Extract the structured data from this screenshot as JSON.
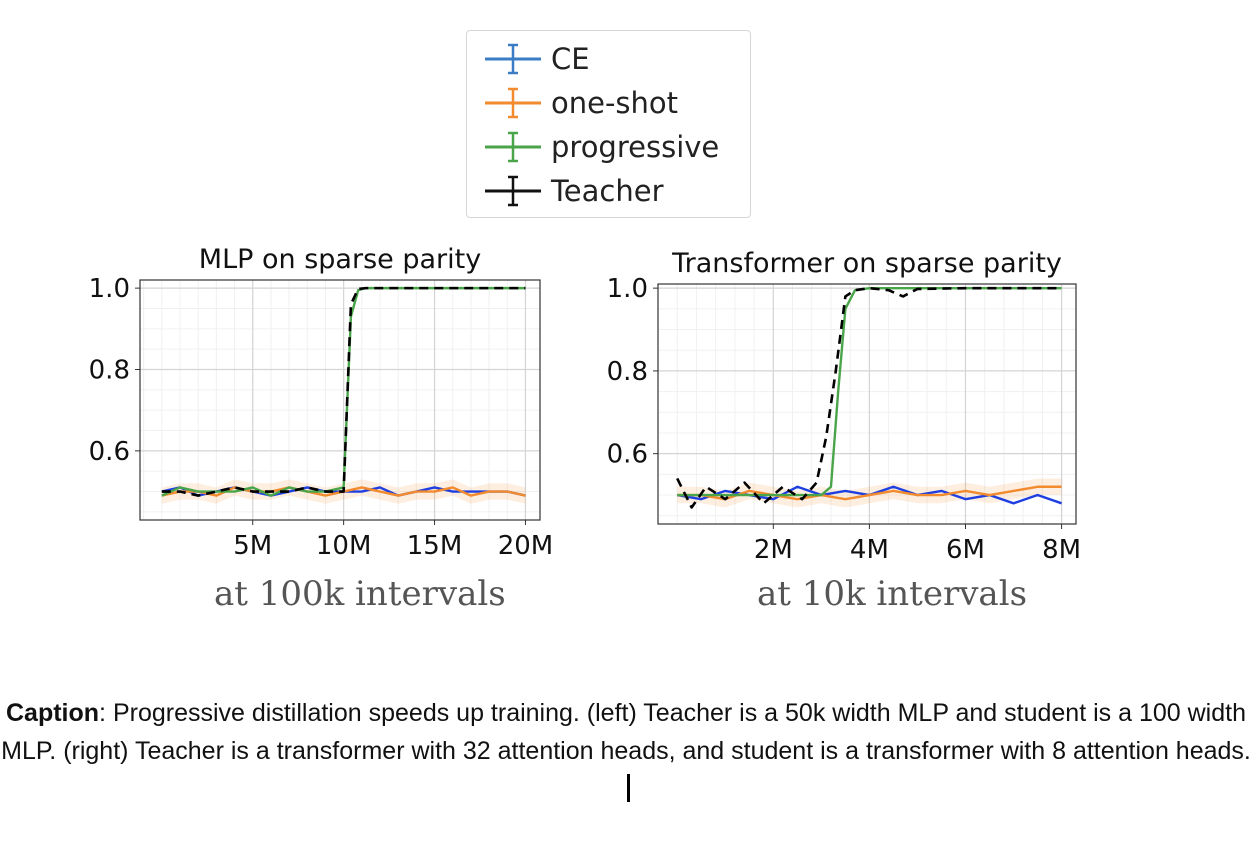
{
  "legend": {
    "items": [
      {
        "label": "CE",
        "color": "#3a7dc4"
      },
      {
        "label": "one-shot",
        "color": "#f28a2e"
      },
      {
        "label": "progressive",
        "color": "#4aa54a"
      },
      {
        "label": "Teacher",
        "color": "#111111"
      }
    ]
  },
  "chart_data": [
    {
      "type": "line",
      "title": "MLP on sparse parity",
      "xlabel": "",
      "ylabel": "",
      "x_unit": "M",
      "xlim": [
        -1.2,
        20.8
      ],
      "ylim": [
        0.43,
        1.02
      ],
      "xticks": [
        5,
        10,
        15,
        20
      ],
      "xtick_labels": [
        "5M",
        "10M",
        "15M",
        "20M"
      ],
      "yticks": [
        0.6,
        0.8,
        1.0
      ],
      "ytick_labels": [
        "0.6",
        "0.8",
        "1.0"
      ],
      "grid": true,
      "series": [
        {
          "name": "CE",
          "color": "#1f3fe0",
          "x": [
            0,
            1,
            2,
            3,
            4,
            5,
            6,
            7,
            8,
            9,
            10,
            11,
            12,
            13,
            14,
            15,
            16,
            17,
            18,
            19,
            20
          ],
          "y": [
            0.5,
            0.51,
            0.49,
            0.5,
            0.51,
            0.5,
            0.49,
            0.5,
            0.51,
            0.5,
            0.5,
            0.5,
            0.51,
            0.49,
            0.5,
            0.51,
            0.5,
            0.5,
            0.5,
            0.5,
            0.49
          ]
        },
        {
          "name": "one-shot",
          "color": "#f28a2e",
          "x": [
            0,
            1,
            2,
            3,
            4,
            5,
            6,
            7,
            8,
            9,
            10,
            11,
            12,
            13,
            14,
            15,
            16,
            17,
            18,
            19,
            20
          ],
          "y": [
            0.49,
            0.5,
            0.5,
            0.49,
            0.51,
            0.5,
            0.5,
            0.51,
            0.5,
            0.49,
            0.5,
            0.51,
            0.5,
            0.49,
            0.5,
            0.5,
            0.51,
            0.49,
            0.5,
            0.5,
            0.49
          ]
        },
        {
          "name": "progressive",
          "color": "#4aa54a",
          "x": [
            0,
            1,
            2,
            3,
            4,
            5,
            6,
            7,
            8,
            9,
            10,
            10.4,
            10.8,
            11.2,
            12,
            14,
            16,
            18,
            20
          ],
          "y": [
            0.49,
            0.51,
            0.5,
            0.5,
            0.5,
            0.51,
            0.49,
            0.51,
            0.5,
            0.5,
            0.51,
            0.93,
            0.995,
            1.0,
            1.0,
            1.0,
            1.0,
            1.0,
            1.0
          ]
        },
        {
          "name": "Teacher",
          "color": "#000000",
          "dashed": true,
          "x": [
            0,
            1,
            2,
            3,
            4,
            5,
            6,
            7,
            8,
            9,
            10,
            10.4,
            10.8,
            11.2,
            12,
            14,
            16,
            18,
            20
          ],
          "y": [
            0.5,
            0.5,
            0.49,
            0.5,
            0.51,
            0.5,
            0.5,
            0.5,
            0.51,
            0.5,
            0.5,
            0.96,
            0.998,
            1.0,
            1.0,
            1.0,
            1.0,
            1.0,
            1.0
          ]
        }
      ]
    },
    {
      "type": "line",
      "title": "Transformer on sparse parity",
      "xlabel": "",
      "ylabel": "",
      "x_unit": "M",
      "xlim": [
        -0.4,
        8.3
      ],
      "ylim": [
        0.43,
        1.01
      ],
      "xticks": [
        2,
        4,
        6,
        8
      ],
      "xtick_labels": [
        "2M",
        "4M",
        "6M",
        "8M"
      ],
      "yticks": [
        0.6,
        0.8,
        1.0
      ],
      "ytick_labels": [
        "0.6",
        "0.8",
        "1.0"
      ],
      "grid": true,
      "series": [
        {
          "name": "CE",
          "color": "#1f3fe0",
          "x": [
            0,
            0.5,
            1,
            1.5,
            2,
            2.5,
            3,
            3.5,
            4,
            4.5,
            5,
            5.5,
            6,
            6.5,
            7,
            7.5,
            8
          ],
          "y": [
            0.5,
            0.49,
            0.51,
            0.5,
            0.49,
            0.52,
            0.5,
            0.51,
            0.5,
            0.52,
            0.5,
            0.51,
            0.49,
            0.5,
            0.48,
            0.5,
            0.48
          ]
        },
        {
          "name": "one-shot",
          "color": "#f28a2e",
          "x": [
            0,
            0.5,
            1,
            1.5,
            2,
            2.5,
            3,
            3.5,
            4,
            4.5,
            5,
            5.5,
            6,
            6.5,
            7,
            7.5,
            8
          ],
          "y": [
            0.5,
            0.5,
            0.49,
            0.51,
            0.5,
            0.49,
            0.5,
            0.49,
            0.5,
            0.51,
            0.5,
            0.5,
            0.51,
            0.5,
            0.51,
            0.52,
            0.52
          ]
        },
        {
          "name": "progressive",
          "color": "#4aa54a",
          "x": [
            0,
            0.5,
            1,
            1.5,
            2,
            2.5,
            3,
            3.2,
            3.35,
            3.5,
            3.7,
            4,
            4.5,
            5,
            6,
            7,
            8
          ],
          "y": [
            0.5,
            0.5,
            0.5,
            0.5,
            0.5,
            0.5,
            0.5,
            0.52,
            0.75,
            0.95,
            0.995,
            1.0,
            1.0,
            1.0,
            1.0,
            1.0,
            1.0
          ]
        },
        {
          "name": "Teacher",
          "color": "#000000",
          "dashed": true,
          "x": [
            0,
            0.3,
            0.6,
            1,
            1.4,
            1.8,
            2.2,
            2.6,
            2.9,
            3.1,
            3.3,
            3.5,
            3.7,
            4,
            4.4,
            4.7,
            5,
            6,
            7,
            8
          ],
          "y": [
            0.54,
            0.47,
            0.52,
            0.49,
            0.53,
            0.48,
            0.52,
            0.49,
            0.53,
            0.64,
            0.8,
            0.98,
            0.995,
            1.0,
            0.995,
            0.98,
            0.998,
            1.0,
            1.0,
            1.0
          ]
        }
      ]
    }
  ],
  "subcaptions": [
    "at 100k intervals",
    "at 10k intervals"
  ],
  "caption": {
    "label": "Caption",
    "text": ": Progressive distillation speeds up training. (left) Teacher is a 50k width MLP and student is a 100 width MLP. (right) Teacher is a transformer with 32 attention heads, and student is a transformer with 8 attention heads."
  }
}
